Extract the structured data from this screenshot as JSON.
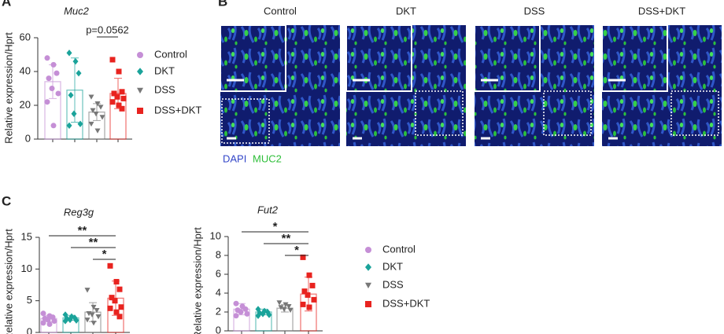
{
  "panel_labels": [
    "A",
    "B",
    "C"
  ],
  "images": {
    "columns": [
      "Control",
      "DKT",
      "DSS",
      "DSS+DKT"
    ],
    "stain_labels": [
      "DAPI",
      "MUC2"
    ]
  },
  "chart_data": [
    {
      "type": "bar",
      "title": "Muc2",
      "y_label": "Relative expression/Hprt",
      "ylim": [
        0,
        60
      ],
      "yticks": [
        0,
        20,
        40,
        60
      ],
      "legend": true,
      "series": [
        {
          "name": "Control",
          "color": "#c58fd6",
          "marker": "circle",
          "value": 34,
          "error": 10,
          "points": [
            48,
            44,
            39,
            36,
            30,
            27,
            22,
            8
          ]
        },
        {
          "name": "DKT",
          "color": "#1aa39a",
          "marker": "diamond",
          "value": 29,
          "error": 19,
          "points": [
            51,
            46,
            39,
            26,
            15,
            9,
            8
          ]
        },
        {
          "name": "DSS",
          "color": "#777777",
          "marker": "triangle",
          "value": 16,
          "error": 5,
          "points": [
            25,
            21,
            19,
            17,
            15,
            13,
            9,
            5
          ]
        },
        {
          "name": "DSS+DKT",
          "color": "#e8231f",
          "marker": "square",
          "value": 27,
          "error": 9,
          "points": [
            47,
            40,
            28,
            27,
            25,
            24,
            22,
            20,
            18
          ]
        }
      ],
      "annotations": [
        {
          "between": [
            "DSS",
            "DSS+DKT"
          ],
          "label": "p=0.0562"
        }
      ]
    },
    {
      "type": "bar",
      "title": "Reg3g",
      "y_label": "Relative expression/Hprt",
      "ylim": [
        0,
        15
      ],
      "yticks": [
        0,
        5,
        10,
        15
      ],
      "legend": false,
      "series": [
        {
          "name": "Control",
          "color": "#c58fd6",
          "marker": "circle",
          "value": 2.2,
          "error": 0.5,
          "points": [
            3,
            2.6,
            2.4,
            2.2,
            2,
            1.8,
            1.5,
            1.3
          ]
        },
        {
          "name": "DKT",
          "color": "#1aa39a",
          "marker": "diamond",
          "value": 2.3,
          "error": 0.4,
          "points": [
            2.8,
            2.5,
            2.3,
            2.2,
            2,
            1.9,
            1.8
          ]
        },
        {
          "name": "DSS",
          "color": "#777777",
          "marker": "triangle",
          "value": 3.2,
          "error": 1.5,
          "points": [
            6.7,
            4,
            3.5,
            3,
            2.8,
            2.5,
            2,
            1.5
          ]
        },
        {
          "name": "DSS+DKT",
          "color": "#e8231f",
          "marker": "square",
          "value": 5.4,
          "error": 2.7,
          "points": [
            10.5,
            8,
            6.8,
            5.5,
            5,
            4,
            3.8,
            3.2,
            2.5
          ]
        }
      ],
      "annotations": [
        {
          "between": [
            "Control",
            "DSS+DKT"
          ],
          "label": "**"
        },
        {
          "between": [
            "DKT",
            "DSS+DKT"
          ],
          "label": "**"
        },
        {
          "between": [
            "DSS",
            "DSS+DKT"
          ],
          "label": "*"
        }
      ]
    },
    {
      "type": "bar",
      "title": "Fut2",
      "y_label": "Relative expression/Hprt",
      "ylim": [
        0,
        10
      ],
      "yticks": [
        0,
        2,
        4,
        6,
        8,
        10
      ],
      "legend": true,
      "series": [
        {
          "name": "Control",
          "color": "#c58fd6",
          "marker": "circle",
          "value": 2.3,
          "error": 0.6,
          "points": [
            2.9,
            2.6,
            2.3,
            2.2,
            2,
            1.8,
            1.6
          ]
        },
        {
          "name": "DKT",
          "color": "#1aa39a",
          "marker": "diamond",
          "value": 2.0,
          "error": 0.3,
          "points": [
            2.3,
            2.1,
            2,
            1.9,
            1.8,
            1.7,
            1.6
          ]
        },
        {
          "name": "DSS",
          "color": "#777777",
          "marker": "triangle",
          "value": 2.4,
          "error": 0.4,
          "points": [
            3,
            2.8,
            2.6,
            2.5,
            2.3,
            2.2
          ]
        },
        {
          "name": "DSS+DKT",
          "color": "#e8231f",
          "marker": "square",
          "value": 3.9,
          "error": 1.8,
          "points": [
            7.8,
            5.9,
            4.8,
            4.2,
            3.8,
            3.3,
            2.8,
            2.5
          ]
        }
      ],
      "annotations": [
        {
          "between": [
            "Control",
            "DSS+DKT"
          ],
          "label": "*"
        },
        {
          "between": [
            "DKT",
            "DSS+DKT"
          ],
          "label": "**"
        },
        {
          "between": [
            "DSS",
            "DSS+DKT"
          ],
          "label": "*"
        }
      ]
    }
  ]
}
